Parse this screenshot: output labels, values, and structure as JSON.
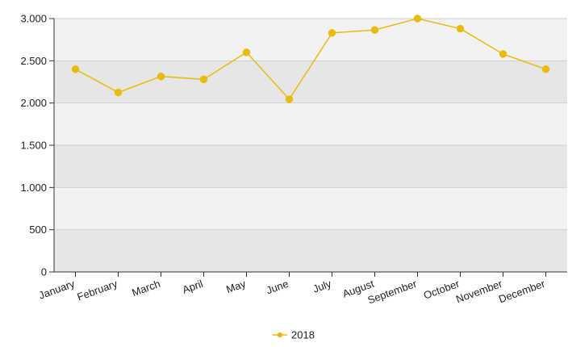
{
  "chart_data": {
    "type": "line",
    "categories": [
      "January",
      "February",
      "March",
      "April",
      "May",
      "June",
      "July",
      "August",
      "September",
      "October",
      "November",
      "December"
    ],
    "series": [
      {
        "name": "2018",
        "color": "#e8bb0e",
        "values": [
          2400,
          2125,
          2315,
          2280,
          2600,
          2045,
          2830,
          2865,
          3000,
          2880,
          2580,
          2400
        ]
      }
    ],
    "ylim": [
      0,
      3000
    ],
    "yticks": [
      0,
      500,
      1000,
      1500,
      2000,
      2500,
      3000
    ],
    "ytick_labels": [
      "0",
      "500",
      "1.000",
      "1.500",
      "2.000",
      "2.500",
      "3.000"
    ],
    "band_colors": [
      "#e6e6e6",
      "#f2f2f2"
    ],
    "grid": true,
    "legend_position": "bottom-center",
    "title": "",
    "xlabel": "",
    "ylabel": ""
  }
}
